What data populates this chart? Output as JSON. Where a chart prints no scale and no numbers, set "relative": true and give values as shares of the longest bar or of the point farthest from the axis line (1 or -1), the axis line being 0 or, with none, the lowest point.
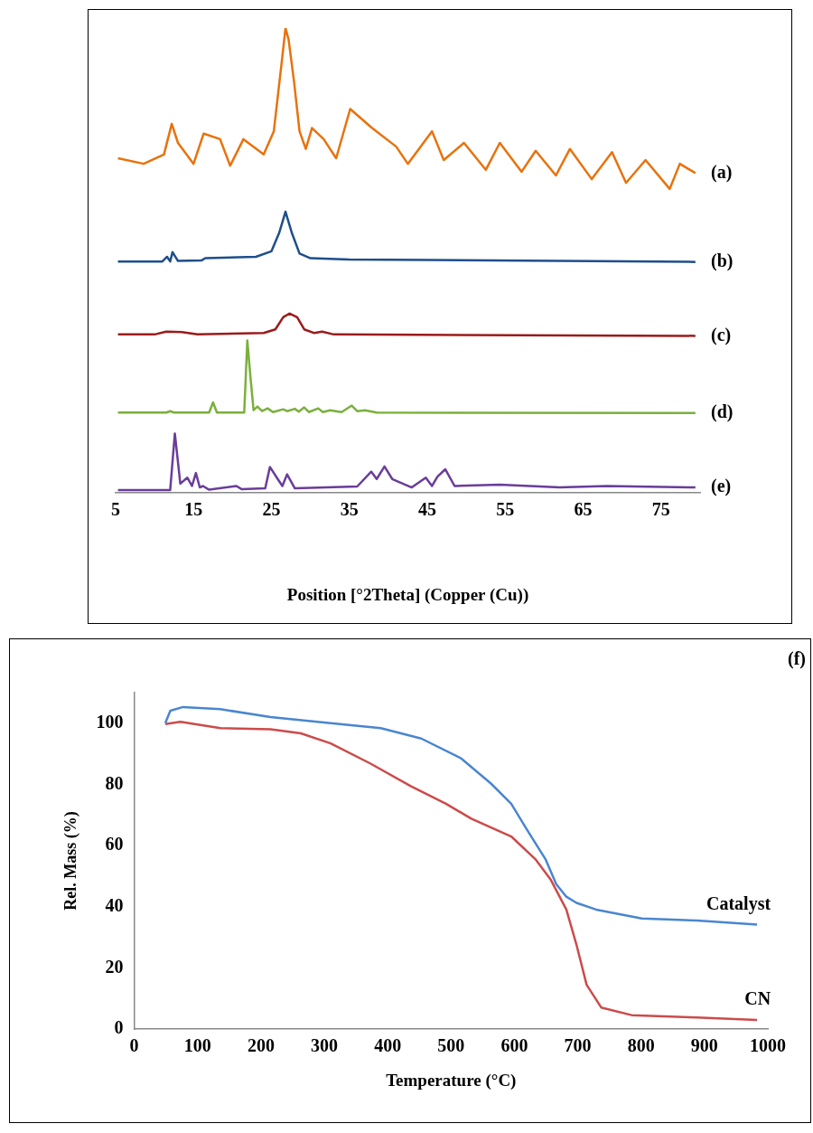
{
  "chart_data": [
    {
      "type": "line",
      "relative": true,
      "xlabel": "Position [°2Theta] (Copper (Cu))",
      "xlim": [
        5,
        80
      ],
      "xticks": [
        5,
        15,
        25,
        35,
        45,
        55,
        65,
        75
      ],
      "grid": false,
      "legend": false,
      "series": [
        {
          "name": "(a)",
          "color": "#e8720c",
          "x": [
            5.3,
            8.6,
            11.2,
            12.2,
            13.0,
            15.0,
            16.3,
            18.4,
            19.7,
            21.4,
            24.0,
            25.3,
            26.3,
            26.8,
            27.2,
            27.9,
            28.6,
            29.4,
            30.2,
            31.7,
            33.3,
            35.1,
            37.9,
            41.0,
            42.5,
            45.6,
            47.1,
            49.7,
            52.5,
            54.3,
            57.1,
            58.9,
            61.5,
            63.3,
            66.1,
            68.7,
            70.5,
            73.0,
            76.1,
            77.4,
            79.4
          ],
          "values": [
            0.72,
            0.708,
            0.728,
            0.794,
            0.753,
            0.708,
            0.773,
            0.761,
            0.704,
            0.761,
            0.728,
            0.778,
            0.925,
            1,
            0.975,
            0.884,
            0.778,
            0.74,
            0.785,
            0.761,
            0.72,
            0.826,
            0.785,
            0.745,
            0.708,
            0.778,
            0.716,
            0.753,
            0.695,
            0.753,
            0.691,
            0.736,
            0.683,
            0.74,
            0.675,
            0.733,
            0.667,
            0.716,
            0.654,
            0.708,
            0.688
          ]
        },
        {
          "name": "(b)",
          "color": "#1f4e8c",
          "x": [
            5.3,
            11,
            11.6,
            12,
            12.3,
            13,
            16,
            16.5,
            23,
            25,
            26,
            26.8,
            27.6,
            28.6,
            30,
            35,
            45,
            79.4
          ],
          "values": [
            0.498,
            0.498,
            0.508,
            0.498,
            0.518,
            0.499,
            0.5,
            0.505,
            0.508,
            0.52,
            0.56,
            0.605,
            0.56,
            0.515,
            0.505,
            0.502,
            0.501,
            0.497
          ]
        },
        {
          "name": "(c)",
          "color": "#9b1b1b",
          "x": [
            5.3,
            10,
            11.5,
            13.5,
            15.5,
            24,
            25.5,
            26.5,
            27.3,
            28.3,
            29.2,
            30.5,
            31.5,
            33,
            79.4
          ],
          "values": [
            0.341,
            0.341,
            0.347,
            0.346,
            0.341,
            0.344,
            0.352,
            0.378,
            0.386,
            0.378,
            0.352,
            0.344,
            0.347,
            0.341,
            0.338
          ]
        },
        {
          "name": "(d)",
          "color": "#7ab03c",
          "x": [
            5.3,
            11.5,
            12,
            12.5,
            17,
            17.5,
            18,
            21.5,
            21.9,
            22.3,
            22.7,
            23.2,
            23.8,
            24.5,
            25.2,
            26.5,
            27,
            28,
            28.5,
            29.2,
            29.8,
            31,
            31.6,
            32.5,
            34,
            35.3,
            36,
            37,
            38.5,
            79.4
          ],
          "values": [
            0.173,
            0.173,
            0.176,
            0.173,
            0.173,
            0.195,
            0.173,
            0.173,
            0.328,
            0.25,
            0.178,
            0.186,
            0.176,
            0.182,
            0.174,
            0.18,
            0.176,
            0.181,
            0.175,
            0.184,
            0.174,
            0.182,
            0.174,
            0.178,
            0.174,
            0.188,
            0.176,
            0.178,
            0.173,
            0.172
          ]
        },
        {
          "name": "(e)",
          "color": "#6a3d9a",
          "x": [
            5.3,
            12,
            12.6,
            13.3,
            14.2,
            14.8,
            15.3,
            15.8,
            16.2,
            17,
            20.5,
            21.2,
            24.2,
            24.8,
            25.8,
            26.4,
            27,
            28,
            36,
            37.8,
            38.5,
            39.5,
            40.5,
            43,
            44.8,
            45.6,
            46.3,
            47.3,
            48.5,
            54.3,
            62,
            68,
            79.4
          ],
          "values": [
            0.006,
            0.006,
            0.128,
            0.02,
            0.033,
            0.015,
            0.043,
            0.012,
            0.015,
            0.007,
            0.015,
            0.008,
            0.01,
            0.056,
            0.03,
            0.015,
            0.04,
            0.01,
            0.014,
            0.046,
            0.03,
            0.057,
            0.03,
            0.012,
            0.033,
            0.015,
            0.035,
            0.051,
            0.015,
            0.018,
            0.012,
            0.015,
            0.012
          ]
        }
      ]
    },
    {
      "type": "line",
      "xlabel": "Temperature (°C)",
      "ylabel": "Rel. Mass (%)",
      "xlim": [
        0,
        1000
      ],
      "xticks": [
        0,
        100,
        200,
        300,
        400,
        500,
        600,
        700,
        800,
        900,
        1000
      ],
      "ylim": [
        0,
        110
      ],
      "yticks": [
        0,
        20,
        40,
        60,
        80,
        100
      ],
      "grid": false,
      "legend": false,
      "annotations": [
        "(f)"
      ],
      "series": [
        {
          "name": "Catalyst",
          "color": "#4a86d0",
          "x": [
            49,
            57,
            77,
            136,
            215,
            310,
            389,
            453,
            516,
            563,
            595,
            619,
            649,
            666,
            682,
            698,
            729,
            801,
            888,
            983
          ],
          "values": [
            100,
            104.1,
            105.3,
            104.6,
            102,
            100,
            98.4,
            95,
            88.5,
            80.3,
            73.7,
            65.5,
            55.6,
            47.4,
            43.3,
            41.3,
            39.1,
            36.2,
            35.5,
            34.2
          ]
        },
        {
          "name": "CN",
          "color": "#cc4b4b",
          "x": [
            49,
            73,
            136,
            215,
            263,
            310,
            373,
            437,
            492,
            532,
            595,
            633,
            657,
            682,
            698,
            714,
            737,
            785,
            888,
            983
          ],
          "values": [
            99.7,
            100.5,
            98.4,
            98,
            96.7,
            93.4,
            86.8,
            79.4,
            73.7,
            68.8,
            63,
            55.6,
            49,
            39.1,
            27.6,
            14.5,
            7.1,
            4.6,
            3.8,
            3.0
          ]
        }
      ]
    }
  ]
}
